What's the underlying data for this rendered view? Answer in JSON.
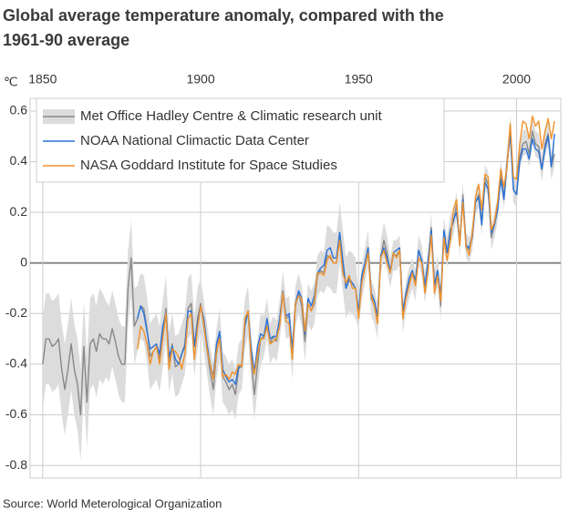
{
  "chart_data": {
    "type": "line",
    "title": "Global average temperature anomaly, compared with the 1961-90 average",
    "y_unit": "℃",
    "source": "Source: World Meterological Organization",
    "x": [
      1850,
      1851,
      1852,
      1853,
      1854,
      1855,
      1856,
      1857,
      1858,
      1859,
      1860,
      1861,
      1862,
      1863,
      1864,
      1865,
      1866,
      1867,
      1868,
      1869,
      1870,
      1871,
      1872,
      1873,
      1874,
      1875,
      1876,
      1877,
      1878,
      1879,
      1880,
      1881,
      1882,
      1883,
      1884,
      1885,
      1886,
      1887,
      1888,
      1889,
      1890,
      1891,
      1892,
      1893,
      1894,
      1895,
      1896,
      1897,
      1898,
      1899,
      1900,
      1901,
      1902,
      1903,
      1904,
      1905,
      1906,
      1907,
      1908,
      1909,
      1910,
      1911,
      1912,
      1913,
      1914,
      1915,
      1916,
      1917,
      1918,
      1919,
      1920,
      1921,
      1922,
      1923,
      1924,
      1925,
      1926,
      1927,
      1928,
      1929,
      1930,
      1931,
      1932,
      1933,
      1934,
      1935,
      1936,
      1937,
      1938,
      1939,
      1940,
      1941,
      1942,
      1943,
      1944,
      1945,
      1946,
      1947,
      1948,
      1949,
      1950,
      1951,
      1952,
      1953,
      1954,
      1955,
      1956,
      1957,
      1958,
      1959,
      1960,
      1961,
      1962,
      1963,
      1964,
      1965,
      1966,
      1967,
      1968,
      1969,
      1970,
      1971,
      1972,
      1973,
      1974,
      1975,
      1976,
      1977,
      1978,
      1979,
      1980,
      1981,
      1982,
      1983,
      1984,
      1985,
      1986,
      1987,
      1988,
      1989,
      1990,
      1991,
      1992,
      1993,
      1994,
      1995,
      1996,
      1997,
      1998,
      1999,
      2000,
      2001,
      2002,
      2003,
      2004,
      2005,
      2006,
      2007,
      2008,
      2009,
      2010,
      2011,
      2012
    ],
    "series": [
      {
        "name": "Met Office Hadley Centre & Climatic research unit",
        "color": "#888888",
        "band_color": "#dcdcdc",
        "values": [
          -0.4,
          -0.3,
          -0.3,
          -0.33,
          -0.32,
          -0.3,
          -0.42,
          -0.5,
          -0.42,
          -0.32,
          -0.42,
          -0.48,
          -0.6,
          -0.33,
          -0.55,
          -0.32,
          -0.3,
          -0.35,
          -0.28,
          -0.3,
          -0.3,
          -0.32,
          -0.26,
          -0.31,
          -0.37,
          -0.4,
          -0.4,
          -0.1,
          0.02,
          -0.25,
          -0.22,
          -0.17,
          -0.18,
          -0.26,
          -0.37,
          -0.35,
          -0.33,
          -0.38,
          -0.28,
          -0.18,
          -0.39,
          -0.32,
          -0.41,
          -0.4,
          -0.36,
          -0.32,
          -0.18,
          -0.16,
          -0.33,
          -0.22,
          -0.16,
          -0.25,
          -0.34,
          -0.43,
          -0.5,
          -0.36,
          -0.28,
          -0.45,
          -0.47,
          -0.5,
          -0.48,
          -0.52,
          -0.42,
          -0.4,
          -0.24,
          -0.19,
          -0.38,
          -0.52,
          -0.4,
          -0.3,
          -0.29,
          -0.22,
          -0.32,
          -0.29,
          -0.31,
          -0.23,
          -0.11,
          -0.22,
          -0.21,
          -0.38,
          -0.17,
          -0.12,
          -0.17,
          -0.31,
          -0.16,
          -0.19,
          -0.16,
          -0.05,
          -0.03,
          -0.04,
          0.03,
          0.02,
          0.0,
          0.0,
          0.12,
          0.01,
          -0.1,
          -0.07,
          -0.08,
          -0.1,
          -0.19,
          -0.08,
          -0.01,
          0.06,
          -0.14,
          -0.17,
          -0.23,
          0.02,
          0.09,
          0.04,
          -0.04,
          0.03,
          0.03,
          0.05,
          -0.22,
          -0.13,
          -0.08,
          -0.04,
          -0.09,
          0.05,
          0.01,
          -0.1,
          -0.01,
          0.14,
          -0.09,
          -0.03,
          -0.17,
          0.12,
          0.04,
          0.13,
          0.16,
          0.23,
          0.07,
          0.27,
          0.07,
          0.05,
          0.1,
          0.24,
          0.27,
          0.16,
          0.34,
          0.31,
          0.1,
          0.15,
          0.21,
          0.36,
          0.26,
          0.4,
          0.53,
          0.29,
          0.27,
          0.42,
          0.47,
          0.48,
          0.43,
          0.52,
          0.47,
          0.46,
          0.37,
          0.47,
          0.51,
          0.38,
          0.43
        ],
        "uncertainty": [
          0.18,
          0.18,
          0.18,
          0.18,
          0.18,
          0.18,
          0.18,
          0.18,
          0.18,
          0.18,
          0.18,
          0.18,
          0.18,
          0.18,
          0.18,
          0.18,
          0.18,
          0.18,
          0.18,
          0.18,
          0.15,
          0.15,
          0.15,
          0.15,
          0.15,
          0.15,
          0.15,
          0.15,
          0.15,
          0.15,
          0.13,
          0.13,
          0.13,
          0.13,
          0.13,
          0.13,
          0.13,
          0.13,
          0.13,
          0.13,
          0.12,
          0.12,
          0.12,
          0.12,
          0.12,
          0.12,
          0.12,
          0.12,
          0.12,
          0.12,
          0.1,
          0.1,
          0.1,
          0.1,
          0.1,
          0.1,
          0.1,
          0.1,
          0.1,
          0.1,
          0.1,
          0.1,
          0.1,
          0.1,
          0.1,
          0.1,
          0.1,
          0.1,
          0.1,
          0.1,
          0.08,
          0.08,
          0.08,
          0.08,
          0.08,
          0.08,
          0.08,
          0.08,
          0.08,
          0.08,
          0.08,
          0.08,
          0.08,
          0.08,
          0.08,
          0.08,
          0.08,
          0.08,
          0.08,
          0.08,
          0.12,
          0.12,
          0.12,
          0.12,
          0.12,
          0.12,
          0.12,
          0.12,
          0.12,
          0.12,
          0.07,
          0.07,
          0.07,
          0.07,
          0.07,
          0.07,
          0.07,
          0.07,
          0.07,
          0.07,
          0.06,
          0.06,
          0.06,
          0.06,
          0.06,
          0.06,
          0.06,
          0.06,
          0.06,
          0.06,
          0.06,
          0.06,
          0.06,
          0.06,
          0.06,
          0.06,
          0.06,
          0.06,
          0.06,
          0.06,
          0.05,
          0.05,
          0.05,
          0.05,
          0.05,
          0.05,
          0.05,
          0.05,
          0.05,
          0.05,
          0.05,
          0.05,
          0.05,
          0.05,
          0.05,
          0.05,
          0.05,
          0.05,
          0.05,
          0.05,
          0.05,
          0.05,
          0.05,
          0.05,
          0.05,
          0.05,
          0.05,
          0.05,
          0.05,
          0.05,
          0.05,
          0.05,
          0.05
        ]
      },
      {
        "name": "NOAA National Climactic Data Center",
        "color": "#2a72d9",
        "values": [
          null,
          null,
          null,
          null,
          null,
          null,
          null,
          null,
          null,
          null,
          null,
          null,
          null,
          null,
          null,
          null,
          null,
          null,
          null,
          null,
          null,
          null,
          null,
          null,
          null,
          null,
          null,
          null,
          null,
          null,
          -0.22,
          -0.17,
          -0.2,
          -0.27,
          -0.34,
          -0.33,
          -0.32,
          -0.36,
          -0.25,
          -0.2,
          -0.37,
          -0.33,
          -0.38,
          -0.4,
          -0.36,
          -0.33,
          -0.19,
          -0.19,
          -0.33,
          -0.24,
          -0.17,
          -0.22,
          -0.32,
          -0.4,
          -0.45,
          -0.32,
          -0.27,
          -0.42,
          -0.45,
          -0.47,
          -0.46,
          -0.48,
          -0.41,
          -0.41,
          -0.25,
          -0.19,
          -0.34,
          -0.43,
          -0.33,
          -0.28,
          -0.29,
          -0.22,
          -0.3,
          -0.29,
          -0.29,
          -0.22,
          -0.12,
          -0.21,
          -0.2,
          -0.34,
          -0.16,
          -0.11,
          -0.14,
          -0.28,
          -0.14,
          -0.17,
          -0.13,
          -0.04,
          -0.02,
          -0.01,
          0.05,
          0.06,
          0.02,
          0.02,
          0.12,
          0.01,
          -0.1,
          -0.06,
          -0.08,
          -0.1,
          -0.19,
          -0.05,
          0.0,
          0.06,
          -0.12,
          -0.15,
          -0.21,
          0.03,
          0.06,
          0.02,
          -0.03,
          0.04,
          0.05,
          0.06,
          -0.19,
          -0.12,
          -0.06,
          -0.03,
          -0.07,
          0.05,
          0.01,
          -0.09,
          0.01,
          0.13,
          -0.09,
          -0.03,
          -0.13,
          0.13,
          0.04,
          0.12,
          0.17,
          0.2,
          0.08,
          0.25,
          0.07,
          0.06,
          0.11,
          0.24,
          0.26,
          0.15,
          0.32,
          0.29,
          0.12,
          0.15,
          0.21,
          0.33,
          0.25,
          0.39,
          0.51,
          0.29,
          0.27,
          0.4,
          0.45,
          0.45,
          0.41,
          0.49,
          0.45,
          0.44,
          0.37,
          0.45,
          0.5,
          0.38,
          0.51
        ]
      },
      {
        "name": "NASA Goddard Institute for Space Studies",
        "color": "#f0922b",
        "values": [
          null,
          null,
          null,
          null,
          null,
          null,
          null,
          null,
          null,
          null,
          null,
          null,
          null,
          null,
          null,
          null,
          null,
          null,
          null,
          null,
          null,
          null,
          null,
          null,
          null,
          null,
          null,
          null,
          null,
          null,
          -0.34,
          -0.25,
          -0.27,
          -0.32,
          -0.4,
          -0.35,
          -0.33,
          -0.4,
          -0.3,
          -0.2,
          -0.42,
          -0.34,
          -0.35,
          -0.37,
          -0.42,
          -0.36,
          -0.22,
          -0.2,
          -0.38,
          -0.26,
          -0.17,
          -0.24,
          -0.34,
          -0.4,
          -0.46,
          -0.35,
          -0.3,
          -0.45,
          -0.44,
          -0.46,
          -0.43,
          -0.44,
          -0.4,
          -0.41,
          -0.22,
          -0.19,
          -0.38,
          -0.44,
          -0.36,
          -0.3,
          -0.3,
          -0.25,
          -0.32,
          -0.31,
          -0.3,
          -0.25,
          -0.12,
          -0.23,
          -0.24,
          -0.38,
          -0.16,
          -0.13,
          -0.14,
          -0.27,
          -0.16,
          -0.19,
          -0.15,
          -0.04,
          -0.04,
          -0.05,
          0.01,
          0.03,
          0.0,
          0.0,
          0.09,
          -0.04,
          -0.08,
          -0.05,
          -0.1,
          -0.1,
          -0.22,
          -0.08,
          -0.02,
          0.04,
          -0.13,
          -0.17,
          -0.24,
          0.02,
          0.05,
          0.0,
          -0.04,
          0.04,
          0.02,
          0.05,
          -0.22,
          -0.14,
          -0.09,
          -0.04,
          -0.09,
          0.02,
          0.0,
          -0.12,
          -0.03,
          0.11,
          -0.12,
          -0.05,
          -0.15,
          0.1,
          0.01,
          0.08,
          0.21,
          0.25,
          0.07,
          0.24,
          0.06,
          0.03,
          0.12,
          0.26,
          0.31,
          0.21,
          0.35,
          0.34,
          0.13,
          0.16,
          0.24,
          0.37,
          0.3,
          0.38,
          0.55,
          0.34,
          0.33,
          0.47,
          0.56,
          0.55,
          0.49,
          0.58,
          0.54,
          0.56,
          0.45,
          0.52,
          0.57,
          0.49,
          0.56
        ]
      }
    ],
    "xlim": [
      1846,
      2014
    ],
    "xticks": [
      1850,
      1900,
      1950,
      2000
    ],
    "ylim": [
      -0.85,
      0.65
    ],
    "yticks": [
      0.6,
      0.4,
      0.2,
      0,
      -0.2,
      -0.4,
      -0.6,
      -0.8
    ],
    "grid": true,
    "legend": "top-left"
  }
}
